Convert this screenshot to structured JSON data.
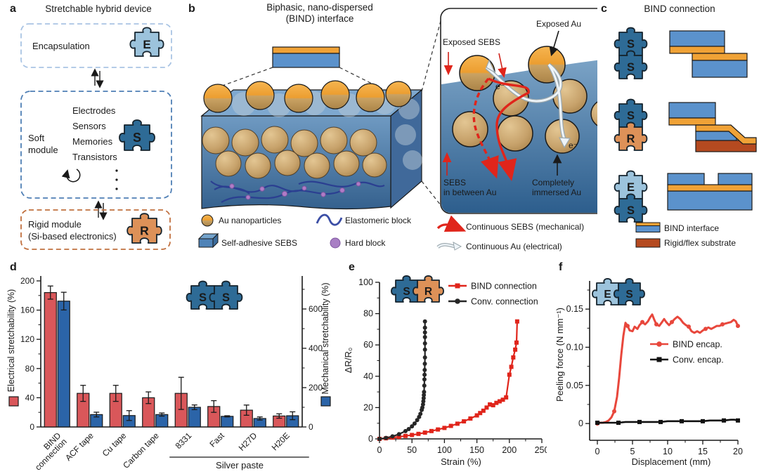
{
  "colors": {
    "module_s": "#2e6b96",
    "module_e": "#9cc3dc",
    "module_r": "#dd9158",
    "puzzle_outline": "#16242e",
    "bar_red": "#d9575a",
    "bar_blue": "#2b64a8",
    "line_red": "#e0251b",
    "line_black": "#262626",
    "peel_red": "#e8473c",
    "bind_blue": "#5b92cc",
    "bind_orange": "#f0a236",
    "substrate": "#b54a20",
    "water": "#4b80b2",
    "au_orange": "#efa43c",
    "au_tan": "#c7a571",
    "hard_block": "#a87fc4",
    "elastomer": "#3b4ea5",
    "box_blue_light": "#a9c4e4",
    "box_blue": "#4f7fb5",
    "box_orange": "#c1703f"
  },
  "panel_a": {
    "letter": "a",
    "title": "Stretchable hybrid device",
    "encapsulation_label": "Encapsulation",
    "soft_label_1": "Soft",
    "soft_label_2": "module",
    "components": [
      "Electrodes",
      "Sensors",
      "Memories",
      "Transistors"
    ],
    "rigid_label_1": "Rigid module",
    "rigid_label_2": "(Si-based electronics)",
    "module_letters": {
      "e": "E",
      "s": "S",
      "r": "R"
    }
  },
  "panel_b": {
    "letter": "b",
    "title_1": "Biphasic, nano-dispersed",
    "title_2": "(BIND) interface",
    "inset": {
      "exposed_au": "Exposed Au",
      "exposed_sebs": "Exposed SEBS",
      "electron_1": "e⁻",
      "electron_2": "e⁻",
      "sebs_between_1": "SEBS",
      "sebs_between_2": "in between Au",
      "immersed_1": "Completely",
      "immersed_2": "immersed Au"
    },
    "legend": [
      "Au nanoparticles",
      "Elastomeric block",
      "Self-adhesive SEBS",
      "Hard block",
      "Continuous SEBS (mechanical)",
      "Continuous Au (electrical)"
    ]
  },
  "panel_c": {
    "letter": "c",
    "title": "BIND connection",
    "legend": [
      "BIND interface",
      "Rigid/flex substrate"
    ]
  },
  "chart_data": [
    {
      "id": "d",
      "panel_letter": "d",
      "type": "bar",
      "categories": [
        "BIND\nconnection",
        "ACF tape",
        "Cu tape",
        "Carbon tape",
        "8331",
        "Fast",
        "H27D",
        "H20E"
      ],
      "series": [
        {
          "name": "Electrical stretchability (%)",
          "axis": "left",
          "color": "#d9575a",
          "values": [
            184,
            46,
            46,
            40,
            46,
            28,
            23,
            15
          ],
          "errors": [
            9,
            11,
            11,
            8,
            22,
            8,
            7,
            3
          ]
        },
        {
          "name": "Mechanical stretchability (%)",
          "axis": "right",
          "color": "#2b64a8",
          "values": [
            640,
            63,
            58,
            63,
            100,
            54,
            43,
            57
          ],
          "errors": [
            45,
            12,
            25,
            8,
            12,
            3,
            8,
            20
          ]
        }
      ],
      "left_axis": {
        "label": "Electrical stretchability (%)",
        "min": 0,
        "max": 207,
        "ticks": [
          [
            0,
            "0"
          ],
          [
            40,
            "40"
          ],
          [
            80,
            "80"
          ],
          [
            120,
            "120"
          ],
          [
            160,
            "160"
          ],
          [
            200,
            "200"
          ]
        ],
        "minor": [
          20,
          60,
          100,
          140,
          180
        ]
      },
      "right_axis": {
        "label": "Mechanical stretchability (%)",
        "min": 0,
        "max": 772,
        "ticks": [
          [
            0,
            "0"
          ],
          [
            200,
            "200"
          ],
          [
            400,
            "400"
          ],
          [
            600,
            "600"
          ]
        ],
        "minor": [
          100,
          300,
          500,
          700
        ]
      },
      "group_annotation": {
        "label": "Silver paste",
        "from": 4,
        "to": 7
      }
    },
    {
      "id": "e",
      "panel_letter": "e",
      "type": "line",
      "xlabel": "Strain (%)",
      "ylabel": "ΔR/R₀",
      "xlim": [
        0,
        250
      ],
      "ylim": [
        0,
        100
      ],
      "xticks": [
        [
          0,
          "0"
        ],
        [
          50,
          "50"
        ],
        [
          100,
          "100"
        ],
        [
          150,
          "150"
        ],
        [
          200,
          "200"
        ],
        [
          250,
          "250"
        ]
      ],
      "yticks": [
        [
          0,
          "0"
        ],
        [
          20,
          "20"
        ],
        [
          40,
          "40"
        ],
        [
          60,
          "60"
        ],
        [
          80,
          "80"
        ],
        [
          100,
          "100"
        ]
      ],
      "xminor": [
        25,
        75,
        125,
        175,
        225
      ],
      "yminor": [
        10,
        30,
        50,
        70,
        90
      ],
      "series": [
        {
          "name": "BIND connection",
          "color": "#e0251b",
          "marker": "square",
          "points": [
            [
              0,
              0
            ],
            [
              10,
              0.4
            ],
            [
              20,
              0.8
            ],
            [
              30,
              1.3
            ],
            [
              40,
              1.9
            ],
            [
              50,
              2.5
            ],
            [
              60,
              3.2
            ],
            [
              70,
              4
            ],
            [
              80,
              5
            ],
            [
              90,
              6
            ],
            [
              100,
              7
            ],
            [
              110,
              8.3
            ],
            [
              120,
              9.7
            ],
            [
              130,
              11.2
            ],
            [
              140,
              13
            ],
            [
              150,
              15
            ],
            [
              155,
              16.5
            ],
            [
              160,
              18
            ],
            [
              165,
              20
            ],
            [
              170,
              22
            ],
            [
              175,
              21.5
            ],
            [
              180,
              23
            ],
            [
              185,
              24
            ],
            [
              190,
              25
            ],
            [
              195,
              26.5
            ],
            [
              200,
              41
            ],
            [
              203,
              46
            ],
            [
              206,
              52
            ],
            [
              209,
              57
            ],
            [
              211,
              61.5
            ],
            [
              212,
              75
            ]
          ]
        },
        {
          "name": "Conv. connection",
          "color": "#262626",
          "marker": "circle",
          "points": [
            [
              0,
              0
            ],
            [
              10,
              0.6
            ],
            [
              20,
              1.6
            ],
            [
              30,
              3
            ],
            [
              40,
              5
            ],
            [
              45,
              6.3
            ],
            [
              50,
              8
            ],
            [
              54,
              9.8
            ],
            [
              58,
              12
            ],
            [
              61,
              14
            ],
            [
              63,
              16
            ],
            [
              65,
              18.5
            ],
            [
              66,
              20
            ],
            [
              67,
              22
            ],
            [
              67.5,
              24
            ],
            [
              68,
              26
            ],
            [
              68.3,
              28
            ],
            [
              68.6,
              30
            ],
            [
              69,
              34
            ],
            [
              69.2,
              38
            ],
            [
              69.4,
              41
            ],
            [
              69.6,
              44
            ],
            [
              69.8,
              48
            ],
            [
              70,
              52
            ],
            [
              70,
              57
            ],
            [
              70,
              61
            ],
            [
              70,
              65
            ],
            [
              70,
              68
            ],
            [
              70,
              71
            ],
            [
              70,
              75
            ]
          ]
        }
      ]
    },
    {
      "id": "f",
      "panel_letter": "f",
      "type": "line",
      "xlabel": "Displacement (mm)",
      "ylabel": "Peeling force (N mm⁻¹)",
      "xlim": [
        -1.1,
        20
      ],
      "ylim": [
        -0.022,
        0.187
      ],
      "xticks": [
        [
          0,
          "0"
        ],
        [
          5,
          "5"
        ],
        [
          10,
          "10"
        ],
        [
          15,
          "15"
        ],
        [
          20,
          "20"
        ]
      ],
      "yticks": [
        [
          0,
          "0"
        ],
        [
          0.05,
          "0.05"
        ],
        [
          0.1,
          "0.10"
        ],
        [
          0.15,
          "0.15"
        ]
      ],
      "xminor": [
        2.5,
        7.5,
        12.5,
        17.5
      ],
      "yminor": [
        0.025,
        0.075,
        0.125,
        0.175
      ],
      "series": [
        {
          "name": "BIND encap.",
          "color": "#e8473c",
          "marker": "circle",
          "points": [
            [
              0,
              0
            ],
            [
              0.4,
              0.001
            ],
            [
              0.8,
              0.001
            ],
            [
              1.2,
              0.002
            ],
            [
              1.6,
              0.004
            ],
            [
              2,
              0.008
            ],
            [
              2.4,
              0.016
            ],
            [
              2.8,
              0.035
            ],
            [
              3.1,
              0.06
            ],
            [
              3.4,
              0.09
            ],
            [
              3.7,
              0.115
            ],
            [
              4,
              0.132
            ],
            [
              4.3,
              0.128
            ],
            [
              4.6,
              0.122
            ],
            [
              5,
              0.121
            ],
            [
              5.3,
              0.127
            ],
            [
              5.7,
              0.124
            ],
            [
              6,
              0.129
            ],
            [
              6.4,
              0.133
            ],
            [
              6.8,
              0.13
            ],
            [
              7.2,
              0.134
            ],
            [
              7.5,
              0.139
            ],
            [
              7.8,
              0.143
            ],
            [
              8.1,
              0.136
            ],
            [
              8.4,
              0.13
            ],
            [
              8.8,
              0.128
            ],
            [
              9.2,
              0.133
            ],
            [
              9.5,
              0.137
            ],
            [
              9.8,
              0.133
            ],
            [
              10.2,
              0.129
            ],
            [
              10.6,
              0.133
            ],
            [
              11,
              0.137
            ],
            [
              11.4,
              0.14
            ],
            [
              11.8,
              0.137
            ],
            [
              12.2,
              0.132
            ],
            [
              12.6,
              0.129
            ],
            [
              13,
              0.127
            ],
            [
              13.4,
              0.121
            ],
            [
              13.8,
              0.119
            ],
            [
              14.2,
              0.121
            ],
            [
              14.6,
              0.119
            ],
            [
              15,
              0.122
            ],
            [
              15.4,
              0.124
            ],
            [
              15.8,
              0.126
            ],
            [
              16.2,
              0.124
            ],
            [
              16.6,
              0.126
            ],
            [
              17,
              0.128
            ],
            [
              17.4,
              0.128
            ],
            [
              17.8,
              0.13
            ],
            [
              18.2,
              0.131
            ],
            [
              18.6,
              0.132
            ],
            [
              19,
              0.133
            ],
            [
              19.4,
              0.136
            ],
            [
              19.7,
              0.134
            ],
            [
              20,
              0.128
            ]
          ]
        },
        {
          "name": "Conv. encap.",
          "color": "#111111",
          "marker": "square",
          "points": [
            [
              0,
              0.001
            ],
            [
              1,
              0.001
            ],
            [
              2,
              0.001
            ],
            [
              3,
              0.001
            ],
            [
              4,
              0.002
            ],
            [
              5,
              0.002
            ],
            [
              6,
              0.002
            ],
            [
              7,
              0.002
            ],
            [
              8,
              0.002
            ],
            [
              9,
              0.002
            ],
            [
              10,
              0.003
            ],
            [
              11,
              0.003
            ],
            [
              12,
              0.003
            ],
            [
              13,
              0.003
            ],
            [
              14,
              0.003
            ],
            [
              15,
              0.003
            ],
            [
              16,
              0.004
            ],
            [
              17,
              0.004
            ],
            [
              18,
              0.004
            ],
            [
              19,
              0.005
            ],
            [
              19.5,
              0.005
            ],
            [
              20,
              0.004
            ]
          ]
        }
      ]
    }
  ]
}
